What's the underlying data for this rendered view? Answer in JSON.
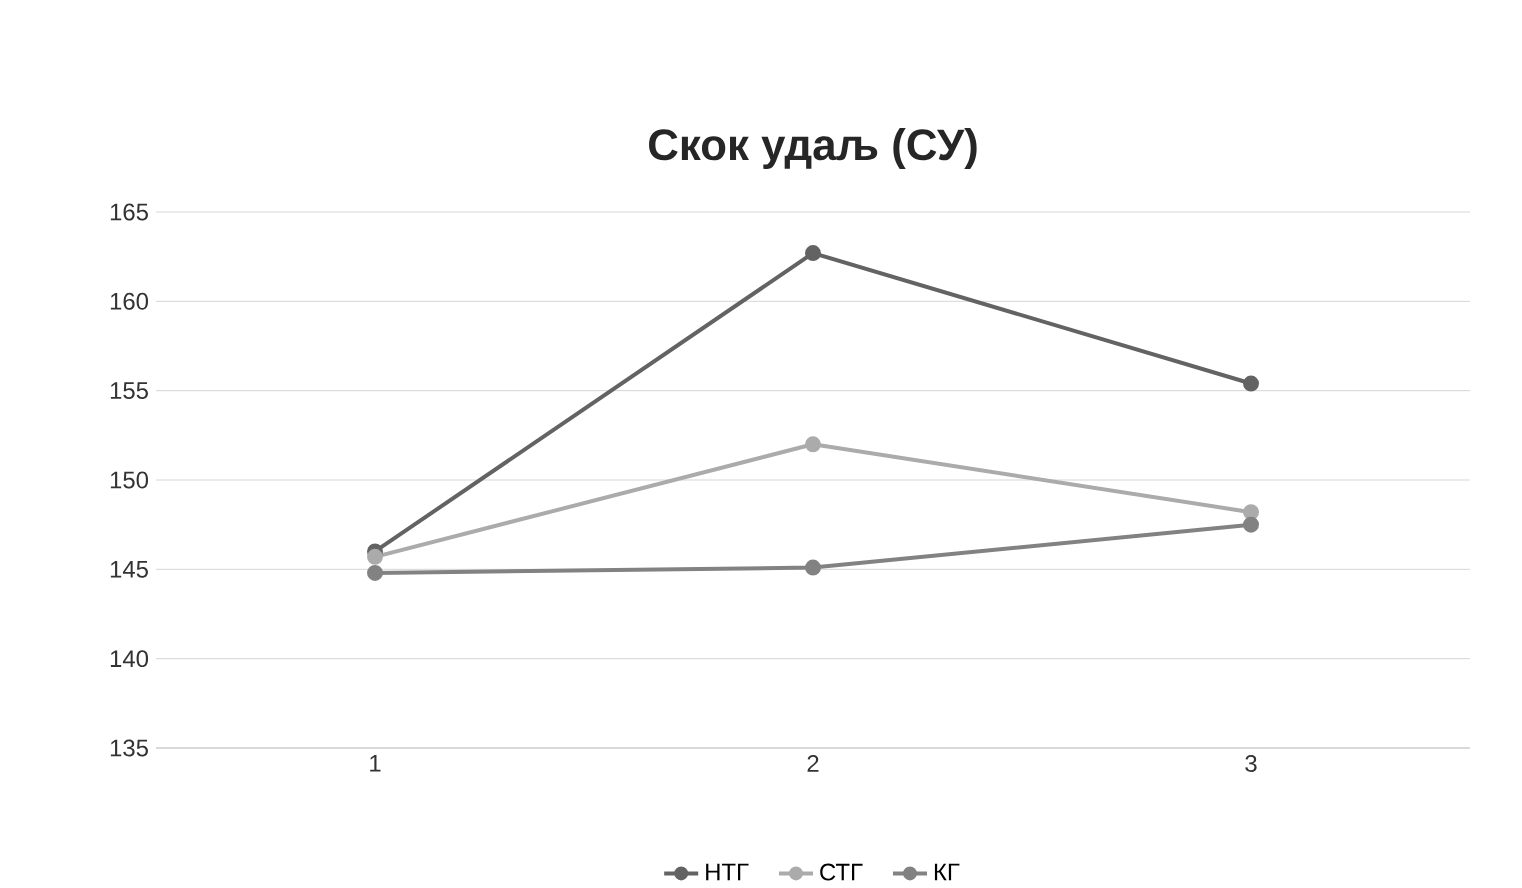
{
  "chart_data": {
    "type": "line",
    "title": "Скок удаљ (СУ)",
    "categories": [
      "1",
      "2",
      "3"
    ],
    "series": [
      {
        "name": "НТГ",
        "color": "#636363",
        "values": [
          146,
          162.7,
          155.4
        ]
      },
      {
        "name": "СТГ",
        "color": "#ababab",
        "values": [
          145.7,
          152,
          148.2
        ]
      },
      {
        "name": "КГ",
        "color": "#828282",
        "values": [
          144.8,
          145.1,
          147.5
        ]
      }
    ],
    "ylim": [
      135,
      165
    ],
    "yticks": [
      135,
      140,
      145,
      150,
      155,
      160,
      165
    ],
    "grid": "y",
    "legend": "bottom",
    "marker": "circle",
    "line_style": "solid"
  }
}
